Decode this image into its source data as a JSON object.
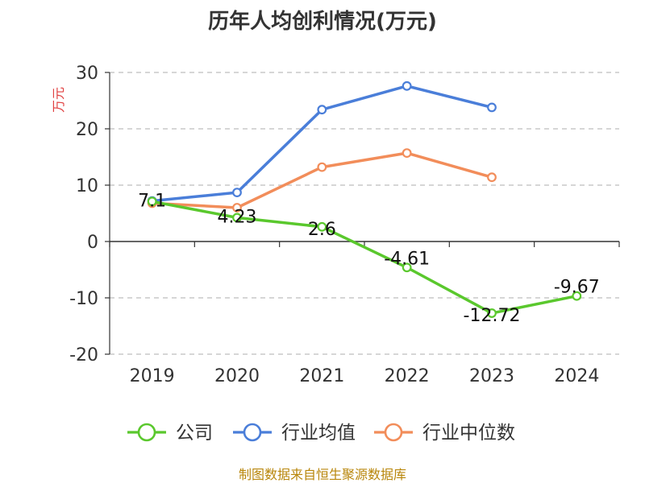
{
  "chart_data": {
    "type": "line",
    "title": "历年人均创利情况(万元)",
    "ylabel": "万元",
    "categories": [
      "2019",
      "2020",
      "2021",
      "2022",
      "2023",
      "2024"
    ],
    "ylim": [
      -20,
      30
    ],
    "yticks": [
      30,
      20,
      10,
      0,
      -10,
      -20
    ],
    "grid": true,
    "legend_position": "bottom",
    "series": [
      {
        "name": "公司",
        "color": "#5ac82d",
        "values": [
          7.1,
          4.23,
          2.6,
          -4.61,
          -12.72,
          -9.67
        ],
        "labels": [
          "7.1",
          "4.23",
          "2.6",
          "-4.61",
          "-12.72",
          "-9.67"
        ]
      },
      {
        "name": "行业均值",
        "color": "#4a7ed9",
        "values": [
          7.2,
          8.7,
          23.4,
          27.6,
          23.8,
          null
        ]
      },
      {
        "name": "行业中位数",
        "color": "#f28d5a",
        "values": [
          6.8,
          6.0,
          13.2,
          15.7,
          11.4,
          null
        ]
      }
    ],
    "source": "制图数据来自恒生聚源数据库"
  }
}
